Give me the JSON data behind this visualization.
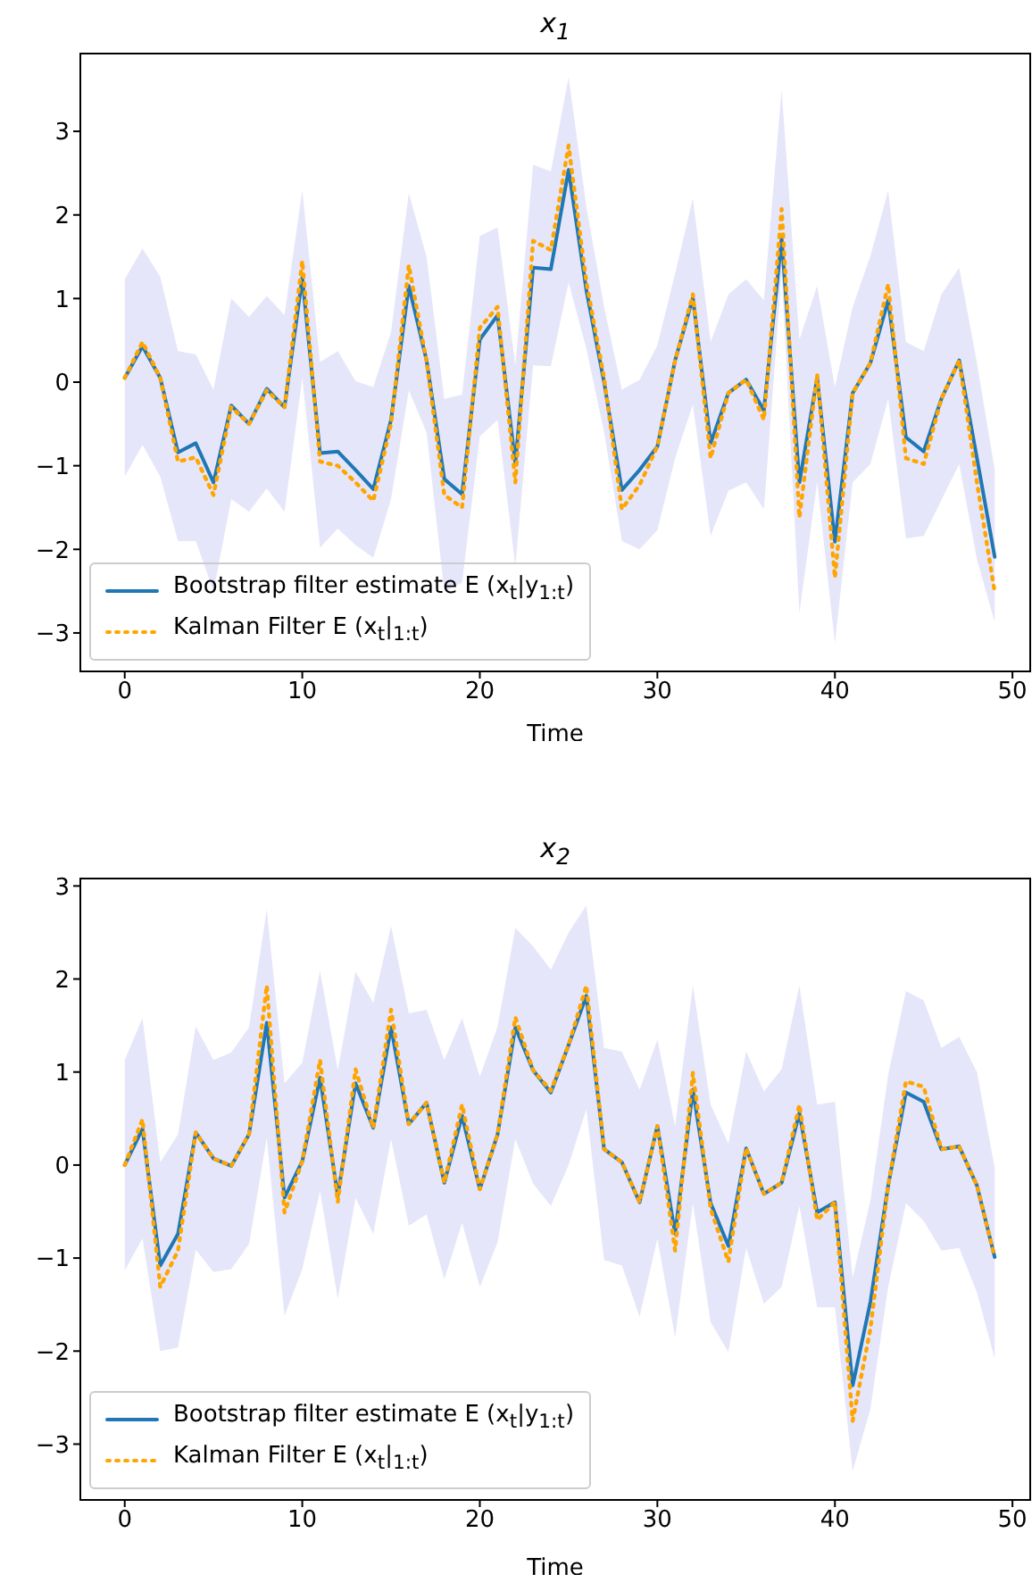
{
  "chart_data": [
    {
      "type": "line",
      "title": "x$_{1}$",
      "xlabel": "Time",
      "x": [
        0,
        1,
        2,
        3,
        4,
        5,
        6,
        7,
        8,
        9,
        10,
        11,
        12,
        13,
        14,
        15,
        16,
        17,
        18,
        19,
        20,
        21,
        22,
        23,
        24,
        25,
        26,
        27,
        28,
        29,
        30,
        31,
        32,
        33,
        34,
        35,
        36,
        37,
        38,
        39,
        40,
        41,
        42,
        43,
        44,
        45,
        46,
        47,
        48,
        49
      ],
      "xlim": [
        -2.5,
        51
      ],
      "xticks": [
        0,
        10,
        20,
        30,
        40,
        50
      ],
      "ylim": [
        -3.46,
        3.93
      ],
      "yticks": [
        {
          "value": -3,
          "label": "−3"
        },
        {
          "value": -2,
          "label": "−2"
        },
        {
          "value": -1,
          "label": "−1"
        },
        0,
        1,
        2,
        3
      ],
      "legend": "bottom left",
      "series": [
        {
          "name": "Bootstrap filter estimate E (x$_{t}$|y$_{1:t}$)",
          "color": "#1f77b4",
          "values": [
            0.05,
            0.43,
            0.05,
            -0.84,
            -0.73,
            -1.2,
            -0.28,
            -0.5,
            -0.08,
            -0.3,
            1.25,
            -0.85,
            -0.83,
            -1.05,
            -1.28,
            -0.45,
            1.15,
            0.26,
            -1.16,
            -1.34,
            0.51,
            0.8,
            -0.97,
            1.37,
            1.35,
            2.54,
            1.1,
            0.0,
            -1.29,
            -1.05,
            -0.77,
            0.26,
            1.01,
            -0.73,
            -0.13,
            0.03,
            -0.34,
            1.72,
            -1.2,
            0.05,
            -1.91,
            -0.13,
            0.23,
            0.98,
            -0.66,
            -0.83,
            -0.2,
            0.26,
            -0.91,
            -2.09
          ],
          "lower": [
            -1.13,
            -0.75,
            -1.13,
            -1.9,
            -1.9,
            -2.5,
            -1.4,
            -1.55,
            -1.27,
            -1.55,
            0.05,
            -1.98,
            -1.75,
            -1.95,
            -2.1,
            -1.4,
            -0.1,
            -0.6,
            -2.5,
            -2.4,
            -0.65,
            -0.45,
            -2.2,
            0.2,
            0.19,
            1.19,
            0.4,
            -0.6,
            -1.9,
            -2.0,
            -1.77,
            -0.91,
            -0.27,
            -1.84,
            -1.3,
            -1.2,
            -1.52,
            1.3,
            -2.76,
            -1.2,
            -3.12,
            -1.2,
            -0.98,
            -0.2,
            -1.87,
            -1.84,
            -1.41,
            -0.98,
            -2.12,
            -2.87
          ],
          "upper": [
            1.23,
            1.6,
            1.26,
            0.37,
            0.33,
            -0.09,
            1.0,
            0.78,
            1.03,
            0.8,
            2.3,
            0.24,
            0.37,
            0.01,
            -0.06,
            0.6,
            2.26,
            1.5,
            -0.2,
            -0.15,
            1.75,
            1.85,
            0.2,
            2.6,
            2.52,
            3.65,
            2.1,
            0.9,
            -0.09,
            0.03,
            0.44,
            1.3,
            2.2,
            0.48,
            1.05,
            1.23,
            0.98,
            3.5,
            0.51,
            1.15,
            -0.06,
            0.9,
            1.51,
            2.29,
            0.48,
            0.37,
            1.05,
            1.37,
            0.23,
            -1.05
          ]
        },
        {
          "name": "Kalman Filter E (x$_{t}$|$_{1:t}$)",
          "color": "#ffa500",
          "line_style": "dotted",
          "values": [
            0.05,
            0.48,
            0.05,
            -0.95,
            -0.9,
            -1.35,
            -0.3,
            -0.5,
            -0.1,
            -0.3,
            1.45,
            -0.95,
            -1.0,
            -1.2,
            -1.42,
            -0.5,
            1.4,
            0.25,
            -1.35,
            -1.5,
            0.65,
            0.9,
            -1.2,
            1.69,
            1.58,
            2.83,
            1.2,
            0.05,
            -1.52,
            -1.23,
            -0.77,
            0.26,
            1.05,
            -0.91,
            -0.13,
            0.03,
            -0.45,
            2.07,
            -1.62,
            0.09,
            -2.34,
            -0.13,
            0.23,
            1.17,
            -0.91,
            -0.98,
            -0.2,
            0.26,
            -1.2,
            -2.51
          ]
        }
      ]
    },
    {
      "type": "line",
      "title": "x$_{2}$",
      "xlabel": "Time",
      "x": [
        0,
        1,
        2,
        3,
        4,
        5,
        6,
        7,
        8,
        9,
        10,
        11,
        12,
        13,
        14,
        15,
        16,
        17,
        18,
        19,
        20,
        21,
        22,
        23,
        24,
        25,
        26,
        27,
        28,
        29,
        30,
        31,
        32,
        33,
        34,
        35,
        36,
        37,
        38,
        39,
        40,
        41,
        42,
        43,
        44,
        45,
        46,
        47,
        48,
        49
      ],
      "xlim": [
        -2.5,
        51
      ],
      "xticks": [
        0,
        10,
        20,
        30,
        40,
        50
      ],
      "ylim": [
        -3.6,
        3.08
      ],
      "yticks": [
        {
          "value": -3,
          "label": "−3"
        },
        {
          "value": -2,
          "label": "−2"
        },
        {
          "value": -1,
          "label": "−1"
        },
        0,
        1,
        2,
        3
      ],
      "legend": "bottom left",
      "series": [
        {
          "name": "Bootstrap filter estimate E (x$_{t}$|y$_{1:t}$)",
          "color": "#1f77b4",
          "values": [
            0.0,
            0.39,
            -1.08,
            -0.74,
            0.35,
            0.07,
            -0.01,
            0.33,
            1.53,
            -0.35,
            0.04,
            0.94,
            -0.33,
            0.88,
            0.4,
            1.48,
            0.44,
            0.67,
            -0.19,
            0.53,
            -0.26,
            0.33,
            1.48,
            1.02,
            0.78,
            1.29,
            1.82,
            0.17,
            0.03,
            -0.4,
            0.42,
            -0.74,
            0.81,
            -0.41,
            -0.87,
            0.18,
            -0.31,
            -0.19,
            0.56,
            -0.51,
            -0.4,
            -2.37,
            -1.47,
            -0.22,
            0.78,
            0.68,
            0.17,
            0.2,
            -0.22,
            -0.99
          ],
          "lower": [
            -1.13,
            -0.79,
            -2.0,
            -1.96,
            -0.91,
            -1.15,
            -1.12,
            -0.85,
            0.29,
            -1.62,
            -1.12,
            -0.28,
            -1.44,
            -0.35,
            -0.74,
            0.28,
            -0.65,
            -0.53,
            -1.23,
            -0.62,
            -1.31,
            -0.83,
            0.28,
            -0.2,
            -0.44,
            0.0,
            0.6,
            -1.02,
            -1.08,
            -1.63,
            -0.79,
            -1.85,
            -0.41,
            -1.69,
            -2.01,
            -0.89,
            -1.49,
            -1.31,
            -0.44,
            -1.53,
            -1.53,
            -3.29,
            -2.62,
            -1.31,
            -0.41,
            -0.6,
            -0.92,
            -0.89,
            -1.37,
            -2.08
          ],
          "upper": [
            1.13,
            1.58,
            0.03,
            0.33,
            1.49,
            1.13,
            1.21,
            1.48,
            2.75,
            0.88,
            1.1,
            2.09,
            1.02,
            2.08,
            1.74,
            2.57,
            1.63,
            1.67,
            1.13,
            1.58,
            0.95,
            1.49,
            2.55,
            2.35,
            2.1,
            2.5,
            2.79,
            1.26,
            1.22,
            0.81,
            1.35,
            0.42,
            1.93,
            0.65,
            0.23,
            1.22,
            0.79,
            1.03,
            1.93,
            0.65,
            0.68,
            -1.21,
            -0.38,
            0.97,
            1.87,
            1.77,
            1.26,
            1.38,
            1.0,
            -0.03
          ]
        },
        {
          "name": "Kalman Filter E (x$_{t}$|$_{1:t}$)",
          "color": "#ffa500",
          "line_style": "dotted",
          "values": [
            0.0,
            0.49,
            -1.31,
            -0.92,
            0.35,
            0.07,
            -0.01,
            0.33,
            1.93,
            -0.51,
            0.04,
            1.13,
            -0.4,
            1.03,
            0.4,
            1.67,
            0.44,
            0.67,
            -0.19,
            0.65,
            -0.26,
            0.33,
            1.59,
            1.02,
            0.8,
            1.29,
            1.93,
            0.17,
            0.03,
            -0.4,
            0.42,
            -0.92,
            0.99,
            -0.47,
            -1.04,
            0.18,
            -0.31,
            -0.19,
            0.65,
            -0.59,
            -0.4,
            -2.75,
            -1.76,
            -0.22,
            0.9,
            0.84,
            0.17,
            0.2,
            -0.22,
            -0.99
          ]
        }
      ]
    }
  ]
}
